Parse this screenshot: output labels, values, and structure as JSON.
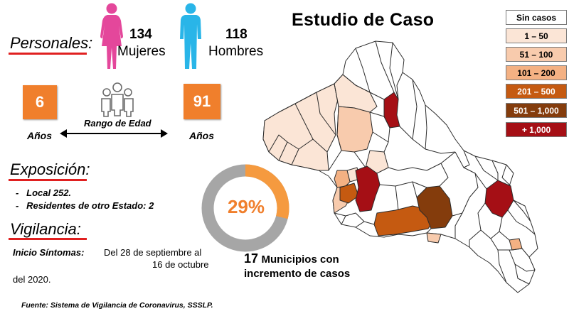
{
  "title": "Estudio de Caso",
  "personales": {
    "label": "Personales:",
    "mujeres_count": "134",
    "mujeres_label": "Mujeres",
    "hombres_count": "118",
    "hombres_label": "Hombres"
  },
  "rango": {
    "min_value": "6",
    "max_value": "91",
    "label": "Rango de Edad",
    "unit_left": "Años",
    "unit_right": "Años"
  },
  "exposicion": {
    "label": "Exposición:",
    "items": [
      "Local  252.",
      "Residentes de otro Estado: 2"
    ]
  },
  "vigilancia": {
    "label": "Vigilancia:",
    "inicio_label": "Inicio Síntomas:",
    "line1": "Del 28 de septiembre al",
    "line2": "16 de octubre",
    "line3": "del 2020."
  },
  "donut": {
    "percent_text": "29%",
    "percent": 29,
    "color_fill": "#f59a3f",
    "color_rest": "#a6a6a6"
  },
  "municipios": {
    "count": "17",
    "line1": "Municipios con",
    "line2": "incremento de casos"
  },
  "fuente": "Fuente: Sistema de Vigilancia de Coronavirus, SSSLP.",
  "legend": [
    {
      "label": "Sin casos",
      "color": "#ffffff",
      "text_color": "#000000"
    },
    {
      "label": "1 – 50",
      "color": "#fbe5d6",
      "text_color": "#000000"
    },
    {
      "label": "51 – 100",
      "color": "#f8cbad",
      "text_color": "#000000"
    },
    {
      "label": "101 – 200",
      "color": "#f4b183",
      "text_color": "#000000"
    },
    {
      "label": "201 – 500",
      "color": "#c55a11",
      "text_color": "#ffffff"
    },
    {
      "label": "501 – 1,000",
      "color": "#843c0c",
      "text_color": "#ffffff"
    },
    {
      "label": "+ 1,000",
      "color": "#a50f15",
      "text_color": "#ffffff"
    }
  ],
  "colors": {
    "female_icon": "#e4479b",
    "male_icon": "#29b5e8",
    "accent_orange": "#f07f2c",
    "underline_red": "#e02020"
  }
}
